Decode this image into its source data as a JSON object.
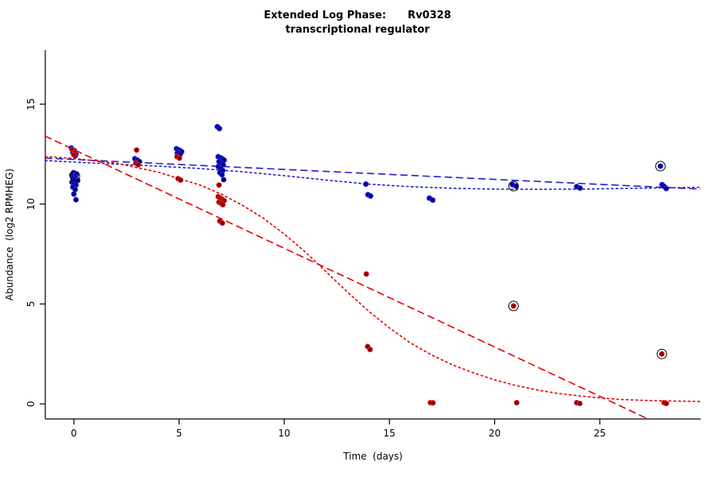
{
  "page": {
    "background": "#ffffff"
  },
  "chart_data": {
    "type": "scatter",
    "title": [
      "Extended Log Phase:      Rv0328",
      "transcriptional regulator"
    ],
    "xlabel": "Time  (days)",
    "ylabel": "Abundance  (log2 RPMHEG)",
    "xticks": [
      0,
      5,
      10,
      15,
      20,
      25
    ],
    "yticks": [
      0,
      5,
      10,
      15
    ],
    "xlim": [
      -1.36,
      29.8
    ],
    "ylim": [
      -0.76,
      17.6
    ],
    "grid": false,
    "legend": "none",
    "colors": {
      "blue_point_fill": "#00008B",
      "blue_point_edge": "#2A2AE8",
      "red_point_fill": "#8B0000",
      "red_point_edge": "#E82A2A",
      "blue_line": "#2020CC",
      "red_line": "#E60000",
      "axis": "#000000",
      "outlier_ring": "#000000"
    },
    "series": [
      {
        "name": "blue-condition-points",
        "type": "points",
        "color": "#00008B",
        "edge": "#2A2AE8",
        "points": [
          [
            -0.12,
            12.8
          ],
          [
            0.02,
            12.68
          ],
          [
            -0.05,
            12.57
          ],
          [
            0.1,
            12.5
          ],
          [
            0.06,
            12.42
          ],
          [
            -0.02,
            11.57
          ],
          [
            0.13,
            11.5
          ],
          [
            -0.1,
            11.45
          ],
          [
            0.08,
            11.37
          ],
          [
            -0.04,
            11.3
          ],
          [
            0.04,
            11.24
          ],
          [
            0.18,
            11.18
          ],
          [
            -0.09,
            11.1
          ],
          [
            0.0,
            11.03
          ],
          [
            0.1,
            10.95
          ],
          [
            -0.05,
            10.85
          ],
          [
            0.06,
            10.73
          ],
          [
            0.0,
            10.5
          ],
          [
            0.1,
            10.22
          ],
          [
            2.9,
            12.27
          ],
          [
            3.02,
            12.2
          ],
          [
            3.12,
            12.12
          ],
          [
            4.88,
            12.77
          ],
          [
            4.96,
            12.72
          ],
          [
            5.04,
            12.68
          ],
          [
            5.12,
            12.62
          ],
          [
            4.92,
            12.55
          ],
          [
            5.06,
            12.5
          ],
          [
            6.82,
            13.87
          ],
          [
            6.92,
            13.78
          ],
          [
            6.86,
            12.37
          ],
          [
            6.96,
            12.32
          ],
          [
            7.06,
            12.27
          ],
          [
            7.14,
            12.2
          ],
          [
            6.9,
            12.12
          ],
          [
            7.0,
            12.05
          ],
          [
            7.1,
            11.97
          ],
          [
            6.86,
            11.88
          ],
          [
            6.98,
            11.78
          ],
          [
            7.08,
            11.68
          ],
          [
            6.94,
            11.57
          ],
          [
            7.04,
            11.47
          ],
          [
            7.12,
            11.22
          ],
          [
            13.88,
            11.0
          ],
          [
            13.98,
            10.47
          ],
          [
            14.1,
            10.4
          ],
          [
            16.9,
            10.3
          ],
          [
            17.06,
            10.2
          ],
          [
            20.85,
            10.97
          ],
          [
            21.02,
            10.9
          ],
          [
            23.9,
            10.87
          ],
          [
            24.06,
            10.8
          ],
          [
            27.88,
            11.9
          ],
          [
            27.96,
            10.97
          ],
          [
            28.06,
            10.88
          ],
          [
            28.16,
            10.78
          ]
        ]
      },
      {
        "name": "red-condition-points",
        "type": "points",
        "color": "#8B0000",
        "edge": "#E82A2A",
        "points": [
          [
            -0.08,
            12.72
          ],
          [
            0.04,
            12.6
          ],
          [
            0.0,
            12.47
          ],
          [
            2.98,
            12.7
          ],
          [
            2.94,
            12.05
          ],
          [
            3.06,
            11.97
          ],
          [
            4.9,
            12.37
          ],
          [
            5.02,
            12.3
          ],
          [
            4.95,
            11.27
          ],
          [
            5.07,
            11.2
          ],
          [
            6.9,
            10.95
          ],
          [
            6.86,
            10.37
          ],
          [
            6.96,
            10.3
          ],
          [
            7.06,
            10.24
          ],
          [
            7.14,
            10.17
          ],
          [
            6.9,
            10.1
          ],
          [
            7.0,
            10.04
          ],
          [
            7.08,
            9.97
          ],
          [
            6.94,
            9.15
          ],
          [
            7.06,
            9.05
          ],
          [
            13.9,
            6.5
          ],
          [
            13.96,
            2.87
          ],
          [
            14.08,
            2.72
          ],
          [
            16.95,
            0.06
          ],
          [
            17.07,
            0.05
          ],
          [
            20.9,
            4.9
          ],
          [
            21.05,
            0.06
          ],
          [
            23.9,
            0.06
          ],
          [
            24.05,
            0.02
          ],
          [
            27.95,
            2.5
          ],
          [
            28.06,
            0.06
          ],
          [
            28.16,
            0.02
          ]
        ]
      }
    ],
    "fits": [
      {
        "name": "blue-dashed-linear-fit",
        "style": "dashed",
        "color": "#2020CC",
        "points": [
          [
            -1.36,
            12.3
          ],
          [
            29.8,
            10.75
          ]
        ]
      },
      {
        "name": "blue-dotted-smooth-fit",
        "style": "dotted",
        "color": "#2020CC",
        "points": [
          [
            -1.36,
            12.18
          ],
          [
            0,
            12.1
          ],
          [
            2,
            12.0
          ],
          [
            4,
            11.9
          ],
          [
            6,
            11.78
          ],
          [
            8,
            11.62
          ],
          [
            10,
            11.42
          ],
          [
            12,
            11.2
          ],
          [
            14,
            11.0
          ],
          [
            16,
            10.87
          ],
          [
            18,
            10.79
          ],
          [
            20,
            10.75
          ],
          [
            22,
            10.74
          ],
          [
            24,
            10.75
          ],
          [
            26,
            10.78
          ],
          [
            28,
            10.81
          ],
          [
            29.8,
            10.84
          ]
        ]
      },
      {
        "name": "red-dashed-linear-fit",
        "style": "dashed",
        "color": "#E60000",
        "points": [
          [
            -1.36,
            13.4
          ],
          [
            28.6,
            -1.4
          ]
        ]
      },
      {
        "name": "red-dotted-smooth-fit",
        "style": "dotted",
        "color": "#E60000",
        "points": [
          [
            -1.36,
            12.38
          ],
          [
            0,
            12.28
          ],
          [
            2,
            12.05
          ],
          [
            4,
            11.6
          ],
          [
            6,
            10.95
          ],
          [
            7,
            10.5
          ],
          [
            8,
            9.95
          ],
          [
            9,
            9.3
          ],
          [
            10,
            8.5
          ],
          [
            11,
            7.6
          ],
          [
            12,
            6.6
          ],
          [
            13,
            5.6
          ],
          [
            14,
            4.65
          ],
          [
            15,
            3.8
          ],
          [
            16,
            3.05
          ],
          [
            17,
            2.45
          ],
          [
            18,
            1.95
          ],
          [
            19,
            1.55
          ],
          [
            20,
            1.2
          ],
          [
            21,
            0.92
          ],
          [
            22,
            0.7
          ],
          [
            23,
            0.52
          ],
          [
            24,
            0.4
          ],
          [
            25,
            0.3
          ],
          [
            26,
            0.22
          ],
          [
            27,
            0.18
          ],
          [
            28,
            0.15
          ],
          [
            29.8,
            0.12
          ]
        ]
      }
    ],
    "outlier_marks": {
      "color": "#000000",
      "points": [
        [
          0.05,
          11.4
        ],
        [
          20.9,
          10.9
        ],
        [
          27.88,
          11.9
        ],
        [
          20.9,
          4.9
        ],
        [
          27.95,
          2.5
        ]
      ]
    }
  }
}
